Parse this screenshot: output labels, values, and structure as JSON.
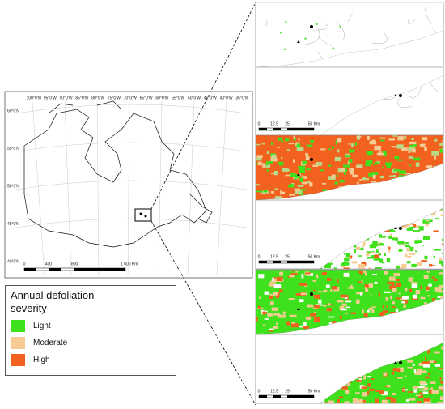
{
  "overview_map": {
    "longitude_labels": [
      "100°0'W",
      "95°0'W",
      "90°0'W",
      "85°0'W",
      "80°0'W",
      "75°0'W",
      "70°0'W",
      "65°0'W",
      "60°0'W",
      "55°0'W",
      "50°0'W",
      "45°0'W",
      "40°0'W",
      "35°0'W"
    ],
    "latitude_labels": [
      "60°0'N",
      "55°0'N",
      "50°0'N",
      "45°0'N",
      "40°0'N"
    ],
    "scale_labels": [
      "0",
      "400",
      "800",
      "1 600 Km"
    ]
  },
  "legend": {
    "title": "Annual defoliation severity",
    "items": [
      {
        "label": "Light",
        "color": "#3fe01c"
      },
      {
        "label": "Moderate",
        "color": "#f7cc94"
      },
      {
        "label": "High",
        "color": "#f2611d"
      }
    ]
  },
  "panels": [
    {
      "scale_labels": [
        "0",
        "12.5",
        "25",
        "50 Km"
      ]
    },
    {
      "scale_labels": [
        "0",
        "12.5",
        "25",
        "50 Km"
      ]
    },
    {
      "scale_labels": [
        "0",
        "12.5",
        "25",
        "50 Km"
      ]
    }
  ]
}
